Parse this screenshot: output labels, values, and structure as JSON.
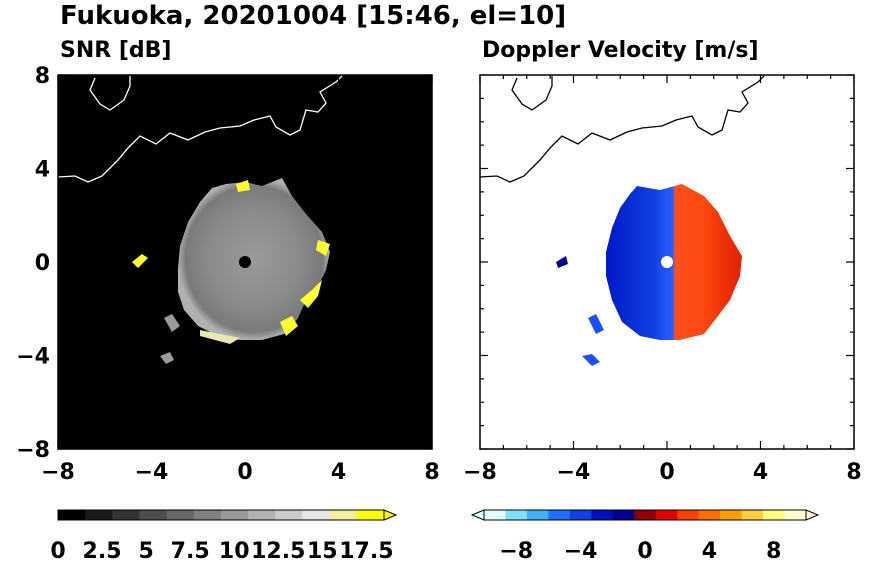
{
  "title": "Fukuoka, 20201004 [15:46, el=10]",
  "chart_data": [
    {
      "type": "heatmap",
      "title": "SNR [dB]",
      "xlim": [
        -8,
        8
      ],
      "ylim": [
        -8,
        8
      ],
      "x_ticks": [
        "−8",
        "−4",
        "0",
        "4",
        "8"
      ],
      "y_ticks": [
        "−8",
        "−4",
        "0",
        "4",
        "8"
      ],
      "background_color": "#000000",
      "echo_radius_km": 3.3,
      "colorbar": {
        "range": [
          0,
          18.5
        ],
        "tick_labels": [
          "0",
          "2.5",
          "5",
          "7.5",
          "10",
          "12.5",
          "15",
          "17.5"
        ],
        "tick_values": [
          0,
          2.5,
          5,
          7.5,
          10,
          12.5,
          15,
          17.5
        ],
        "extend": "max",
        "colormap": [
          "#000000",
          "#1a1a1a",
          "#333333",
          "#4d4d4d",
          "#666666",
          "#808080",
          "#999999",
          "#b3b3b3",
          "#cccccc",
          "#e6e6e6",
          "#f0f0a0",
          "#ffff00"
        ]
      }
    },
    {
      "type": "heatmap",
      "title": "Doppler Velocity [m/s]",
      "xlim": [
        -8,
        8
      ],
      "ylim": [
        -8,
        8
      ],
      "x_ticks": [
        "−8",
        "−4",
        "0",
        "4",
        "8"
      ],
      "y_ticks": [
        "−8",
        "−4",
        "0",
        "4",
        "8"
      ],
      "background_color": "#ffffff",
      "echo_radius_km": 3.3,
      "colorbar": {
        "range": [
          -10,
          10
        ],
        "tick_labels": [
          "−8",
          "−4",
          "0",
          "4",
          "8"
        ],
        "tick_values": [
          -8,
          -4,
          0,
          4,
          8
        ],
        "extend": "both",
        "colormap": [
          "#e0ffff",
          "#80e0ff",
          "#40b0ff",
          "#2070ff",
          "#1040e0",
          "#0010c0",
          "#000090",
          "#900000",
          "#e00000",
          "#ff4000",
          "#ff7000",
          "#ffa000",
          "#ffd040",
          "#ffff80",
          "#ffffd0"
        ]
      }
    }
  ]
}
